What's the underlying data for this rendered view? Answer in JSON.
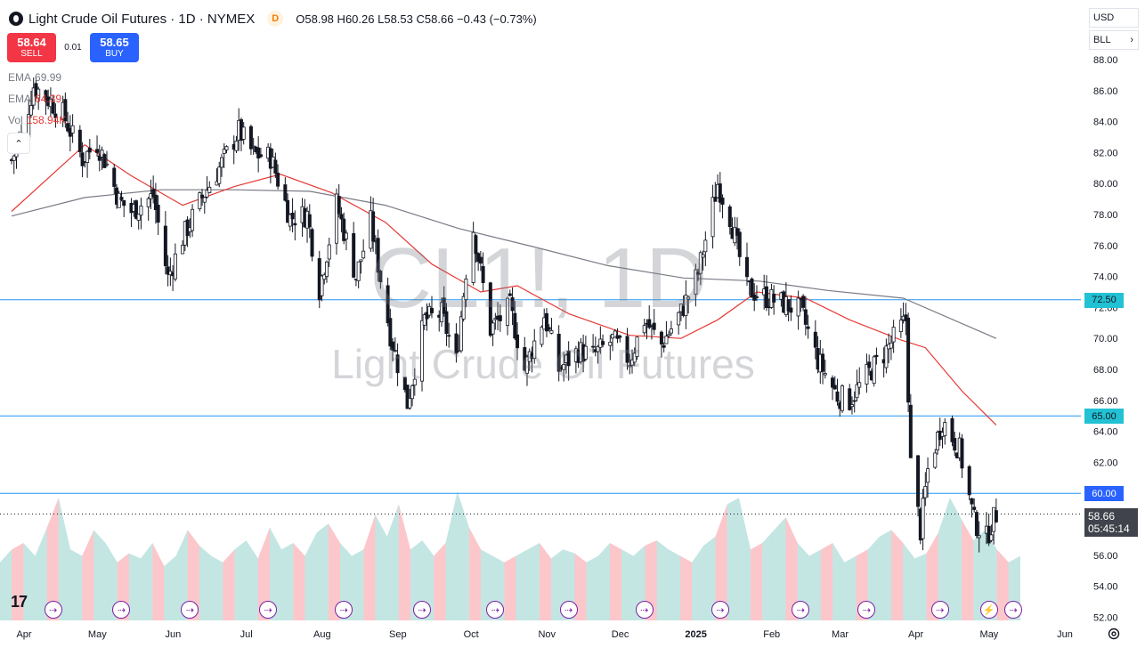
{
  "header": {
    "title": "Light Crude Oil Futures · 1D · NYMEX",
    "badge": "D",
    "open_label": "O",
    "open": "58.98",
    "high_label": "H",
    "high": "60.26",
    "low_label": "L",
    "low": "58.53",
    "close_label": "C",
    "close": "58.66",
    "change": "−0.43 (−0.73%)"
  },
  "trade": {
    "sell_price": "58.64",
    "sell_label": "SELL",
    "spread": "0.01",
    "buy_price": "58.65",
    "buy_label": "BUY"
  },
  "legend": {
    "ema1_label": "EMA",
    "ema1_value": "69.99",
    "ema2_label": "EMA",
    "ema2_value": "64.39",
    "vol_label": "Vol",
    "vol_value": "158.94K"
  },
  "scale_controls": {
    "currency": "USD",
    "unit": "BLL"
  },
  "watermark": {
    "symbol": "CL1!, 1D",
    "name": "Light Crude Oil Futures"
  },
  "last_price": {
    "price": "58.66",
    "countdown": "05:45:14"
  },
  "colors": {
    "up": "#26a69a",
    "down": "#f23645",
    "candle": "#131722",
    "ema_fast": "#e53935",
    "ema_slow": "#787b86",
    "level_line": "#2196f3",
    "level_tag": "#22c1d3",
    "event_icon": "#7b1fa2"
  },
  "icons": {
    "symbol": "oil-drop-icon",
    "collapse": "chevron-up-icon",
    "scale_menu": "chevron-down-icon",
    "event": "arrow-right-circle-icon",
    "dividend": "lightning-icon",
    "settings": "gear-icon",
    "logo": "tradingview-logo"
  },
  "chart_data": {
    "type": "candlestick",
    "symbol": "CL1!",
    "interval": "1D",
    "y_axis": {
      "range": [
        52,
        89
      ],
      "ticks": [
        "88.00",
        "86.00",
        "84.00",
        "82.00",
        "80.00",
        "78.00",
        "76.00",
        "74.00",
        "72.00",
        "70.00",
        "68.00",
        "66.00",
        "64.00",
        "62.00",
        "60.00",
        "58.00",
        "56.00",
        "54.00",
        "52.00"
      ]
    },
    "x_axis": {
      "labels": [
        "Apr",
        "May",
        "Jun",
        "Jul",
        "Aug",
        "Sep",
        "Oct",
        "Nov",
        "Dec",
        "2025",
        "Feb",
        "Mar",
        "Apr",
        "May",
        "Jun"
      ],
      "bold_labels": [
        "2025"
      ]
    },
    "horizontal_levels": [
      {
        "price": 72.5,
        "label": "72.50",
        "tagged": true
      },
      {
        "price": 65.0,
        "label": "65.00",
        "tagged": true
      },
      {
        "price": 60.0,
        "label": "60.00",
        "tagged": true
      }
    ],
    "price_path": [
      [
        "2024-04-01",
        81.5
      ],
      [
        "2024-04-05",
        83.0
      ],
      [
        "2024-04-10",
        86.3
      ],
      [
        "2024-04-15",
        85.6
      ],
      [
        "2024-04-22",
        84.5
      ],
      [
        "2024-04-30",
        81.6
      ],
      [
        "2024-05-06",
        82.6
      ],
      [
        "2024-05-10",
        81.2
      ],
      [
        "2024-05-15",
        78.9
      ],
      [
        "2024-05-20",
        78.2
      ],
      [
        "2024-05-29",
        79.2
      ],
      [
        "2024-06-04",
        73.9
      ],
      [
        "2024-06-10",
        76.5
      ],
      [
        "2024-06-18",
        79.1
      ],
      [
        "2024-06-25",
        81.0
      ],
      [
        "2024-07-03",
        83.4
      ],
      [
        "2024-07-09",
        81.9
      ],
      [
        "2024-07-16",
        81.7
      ],
      [
        "2024-07-24",
        77.8
      ],
      [
        "2024-07-31",
        78.0
      ],
      [
        "2024-08-05",
        73.2
      ],
      [
        "2024-08-12",
        78.7
      ],
      [
        "2024-08-20",
        74.0
      ],
      [
        "2024-08-26",
        77.5
      ],
      [
        "2024-09-03",
        70.3
      ],
      [
        "2024-09-10",
        65.8
      ],
      [
        "2024-09-17",
        71.2
      ],
      [
        "2024-09-24",
        71.6
      ],
      [
        "2024-09-30",
        68.5
      ],
      [
        "2024-10-04",
        74.4
      ],
      [
        "2024-10-07",
        77.1
      ],
      [
        "2024-10-14",
        70.6
      ],
      [
        "2024-10-22",
        72.0
      ],
      [
        "2024-10-28",
        68.0
      ],
      [
        "2024-11-05",
        71.5
      ],
      [
        "2024-11-11",
        68.0
      ],
      [
        "2024-11-19",
        69.2
      ],
      [
        "2024-11-25",
        68.9
      ],
      [
        "2024-12-03",
        69.9
      ],
      [
        "2024-12-10",
        68.6
      ],
      [
        "2024-12-16",
        71.2
      ],
      [
        "2024-12-23",
        69.6
      ],
      [
        "2024-12-31",
        71.7
      ],
      [
        "2025-01-07",
        74.2
      ],
      [
        "2025-01-15",
        80.0
      ],
      [
        "2025-01-20",
        77.9
      ],
      [
        "2025-01-27",
        73.2
      ],
      [
        "2025-02-03",
        72.7
      ],
      [
        "2025-02-10",
        72.3
      ],
      [
        "2025-02-18",
        71.8
      ],
      [
        "2025-02-25",
        68.6
      ],
      [
        "2025-03-05",
        66.3
      ],
      [
        "2025-03-10",
        66.0
      ],
      [
        "2025-03-17",
        67.6
      ],
      [
        "2025-03-24",
        69.0
      ],
      [
        "2025-04-02",
        71.2
      ],
      [
        "2025-04-04",
        61.9
      ],
      [
        "2025-04-08",
        57.6
      ],
      [
        "2025-04-11",
        61.5
      ],
      [
        "2025-04-17",
        64.7
      ],
      [
        "2025-04-24",
        62.8
      ],
      [
        "2025-04-30",
        58.2
      ],
      [
        "2025-05-05",
        57.1
      ],
      [
        "2025-05-07",
        58.0
      ],
      [
        "2025-05-09",
        58.66
      ]
    ],
    "ema_fast": [
      [
        "2024-04-01",
        78.2
      ],
      [
        "2024-05-01",
        82.5
      ],
      [
        "2024-05-20",
        80.5
      ],
      [
        "2024-06-10",
        78.6
      ],
      [
        "2024-07-01",
        79.8
      ],
      [
        "2024-07-20",
        80.6
      ],
      [
        "2024-08-10",
        79.4
      ],
      [
        "2024-09-01",
        77.5
      ],
      [
        "2024-09-20",
        74.8
      ],
      [
        "2024-10-10",
        73.0
      ],
      [
        "2024-10-25",
        73.4
      ],
      [
        "2024-11-15",
        71.6
      ],
      [
        "2024-12-10",
        70.2
      ],
      [
        "2024-12-31",
        70.0
      ],
      [
        "2025-01-15",
        71.2
      ],
      [
        "2025-01-31",
        73.0
      ],
      [
        "2025-02-20",
        72.6
      ],
      [
        "2025-03-10",
        71.2
      ],
      [
        "2025-03-31",
        69.9
      ],
      [
        "2025-04-10",
        69.4
      ],
      [
        "2025-04-25",
        66.6
      ],
      [
        "2025-05-09",
        64.4
      ]
    ],
    "ema_slow": [
      [
        "2024-04-01",
        77.9
      ],
      [
        "2024-05-01",
        79.1
      ],
      [
        "2024-06-01",
        79.6
      ],
      [
        "2024-07-01",
        79.6
      ],
      [
        "2024-08-01",
        79.5
      ],
      [
        "2024-09-01",
        78.6
      ],
      [
        "2024-10-01",
        77.1
      ],
      [
        "2024-11-01",
        75.9
      ],
      [
        "2024-12-01",
        74.7
      ],
      [
        "2025-01-01",
        73.9
      ],
      [
        "2025-02-01",
        73.7
      ],
      [
        "2025-03-01",
        73.1
      ],
      [
        "2025-04-01",
        72.6
      ],
      [
        "2025-05-09",
        70.0
      ]
    ],
    "volume": {
      "max_label": "158.94K",
      "relative_levels": [
        0.45,
        0.55,
        0.6,
        0.5,
        0.72,
        0.95,
        0.55,
        0.5,
        0.7,
        0.6,
        0.45,
        0.52,
        0.48,
        0.6,
        0.42,
        0.5,
        0.7,
        0.58,
        0.5,
        0.45,
        0.55,
        0.62,
        0.48,
        0.72,
        0.55,
        0.6,
        0.5,
        0.68,
        0.75,
        0.6,
        0.5,
        0.55,
        0.82,
        0.65,
        0.9,
        0.55,
        0.62,
        0.5,
        0.6,
        1.0,
        0.72,
        0.55,
        0.5,
        0.45,
        0.5,
        0.55,
        0.6,
        0.48,
        0.55,
        0.52,
        0.45,
        0.5,
        0.6,
        0.55,
        0.5,
        0.58,
        0.62,
        0.55,
        0.5,
        0.45,
        0.58,
        0.65,
        0.9,
        0.95,
        0.55,
        0.6,
        0.7,
        0.8,
        0.6,
        0.5,
        0.55,
        0.6,
        0.45,
        0.5,
        0.55,
        0.65,
        0.7,
        0.6,
        0.48,
        0.52,
        0.68,
        0.95,
        0.78,
        0.62,
        0.7,
        0.55,
        0.45,
        0.5
      ]
    },
    "events": [
      {
        "date": "2024-04-18",
        "type": "economic"
      },
      {
        "date": "2024-05-16",
        "type": "economic"
      },
      {
        "date": "2024-06-13",
        "type": "economic"
      },
      {
        "date": "2024-07-15",
        "type": "economic"
      },
      {
        "date": "2024-08-15",
        "type": "economic"
      },
      {
        "date": "2024-09-16",
        "type": "economic"
      },
      {
        "date": "2024-10-16",
        "type": "economic"
      },
      {
        "date": "2024-11-15",
        "type": "economic"
      },
      {
        "date": "2024-12-16",
        "type": "economic"
      },
      {
        "date": "2025-01-16",
        "type": "economic"
      },
      {
        "date": "2025-02-18",
        "type": "economic"
      },
      {
        "date": "2025-03-17",
        "type": "economic"
      },
      {
        "date": "2025-04-16",
        "type": "economic"
      },
      {
        "date": "2025-05-06",
        "type": "dividend"
      },
      {
        "date": "2025-05-16",
        "type": "economic"
      }
    ]
  }
}
